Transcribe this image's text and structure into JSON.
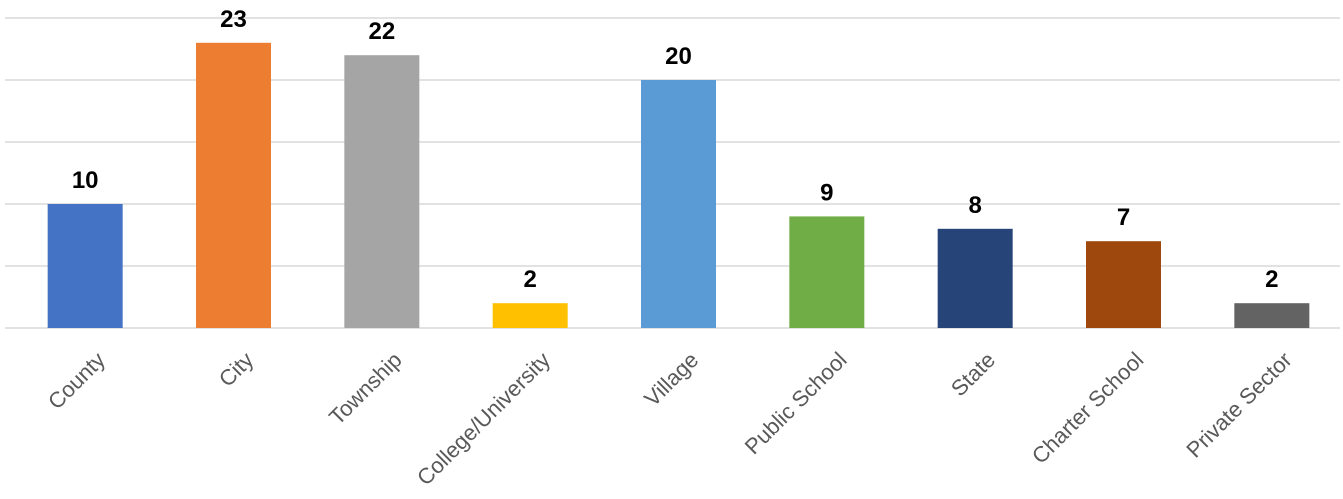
{
  "chart_data": {
    "type": "bar",
    "title": "",
    "xlabel": "",
    "ylabel": "",
    "categories": [
      "County",
      "City",
      "Township",
      "College/University",
      "Village",
      "Public School",
      "State",
      "Charter School",
      "Private Sector"
    ],
    "values": [
      10,
      23,
      22,
      2,
      20,
      9,
      8,
      7,
      2
    ],
    "colors": [
      "#4472c4",
      "#ed7d31",
      "#a5a5a5",
      "#ffc000",
      "#5b9bd5",
      "#70ad47",
      "#264478",
      "#9e480e",
      "#636363"
    ],
    "ylim": [
      0,
      25
    ],
    "y_gridline_step": 5,
    "grid": true,
    "legend": "none",
    "data_labels": true
  }
}
